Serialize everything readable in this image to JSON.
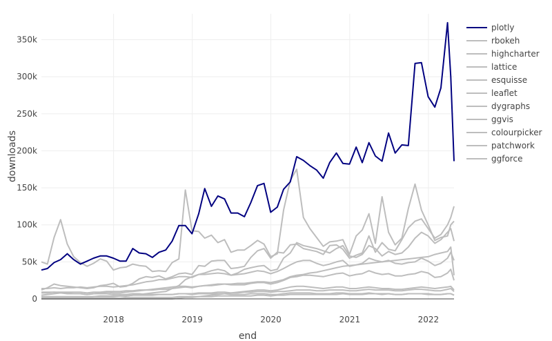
{
  "chart_data": {
    "type": "line",
    "xlabel": "end",
    "ylabel": "downloads",
    "xlim": [
      "2017-01-31",
      "2022-04-30"
    ],
    "ylim": [
      0,
      385000
    ],
    "x_ticks": [
      {
        "date": "2018-01-01",
        "label": "2018"
      },
      {
        "date": "2019-01-01",
        "label": "2019"
      },
      {
        "date": "2020-01-01",
        "label": "2020"
      },
      {
        "date": "2021-01-01",
        "label": "2021"
      },
      {
        "date": "2022-01-01",
        "label": "2022"
      }
    ],
    "y_ticks": [
      {
        "value": 0,
        "label": "0"
      },
      {
        "value": 50000,
        "label": "50k"
      },
      {
        "value": 100000,
        "label": "100k"
      },
      {
        "value": 150000,
        "label": "150k"
      },
      {
        "value": 200000,
        "label": "200k"
      },
      {
        "value": 250000,
        "label": "250k"
      },
      {
        "value": 300000,
        "label": "300k"
      },
      {
        "value": 350000,
        "label": "350k"
      }
    ],
    "grid": true,
    "legend": "right",
    "highlight_color": "#000080",
    "other_color": "#bdbdbd",
    "x": [
      "2017-01-31",
      "2017-02-28",
      "2017-03-31",
      "2017-04-30",
      "2017-05-31",
      "2017-06-30",
      "2017-07-31",
      "2017-08-31",
      "2017-09-30",
      "2017-10-31",
      "2017-11-30",
      "2017-12-31",
      "2018-01-31",
      "2018-02-28",
      "2018-03-31",
      "2018-04-30",
      "2018-05-31",
      "2018-06-30",
      "2018-07-31",
      "2018-08-31",
      "2018-09-30",
      "2018-10-31",
      "2018-11-30",
      "2018-12-31",
      "2019-01-31",
      "2019-02-28",
      "2019-03-31",
      "2019-04-30",
      "2019-05-31",
      "2019-06-30",
      "2019-07-31",
      "2019-08-31",
      "2019-09-30",
      "2019-10-31",
      "2019-11-30",
      "2019-12-31",
      "2020-01-31",
      "2020-02-29",
      "2020-03-31",
      "2020-04-30",
      "2020-05-31",
      "2020-06-30",
      "2020-07-31",
      "2020-08-31",
      "2020-09-30",
      "2020-10-31",
      "2020-11-30",
      "2020-12-31",
      "2021-01-31",
      "2021-02-28",
      "2021-03-31",
      "2021-04-30",
      "2021-05-31",
      "2021-06-30",
      "2021-07-31",
      "2021-08-31",
      "2021-09-30",
      "2021-10-31",
      "2021-11-30",
      "2021-12-31",
      "2022-01-31",
      "2022-02-28",
      "2022-03-31",
      "2022-04-15",
      "2022-04-30"
    ],
    "series": [
      {
        "name": "plotly",
        "highlight": true,
        "values": [
          39000,
          41000,
          49000,
          53000,
          61000,
          53000,
          47000,
          51000,
          55000,
          58000,
          58000,
          55000,
          51000,
          51000,
          68000,
          62000,
          61000,
          56000,
          63000,
          66000,
          78000,
          99000,
          99000,
          88000,
          115000,
          149000,
          125000,
          139000,
          135000,
          116000,
          116000,
          111000,
          130000,
          153000,
          156000,
          117000,
          124000,
          148000,
          158000,
          192000,
          187000,
          180000,
          174000,
          163000,
          184000,
          197000,
          183000,
          182000,
          205000,
          184000,
          211000,
          193000,
          186000,
          224000,
          197000,
          208000,
          207000,
          318000,
          319000,
          273000,
          259000,
          285000,
          373000,
          300000,
          186000
        ]
      },
      {
        "name": "rbokeh",
        "values": [
          50000,
          47000,
          83000,
          107000,
          74000,
          57000,
          49000,
          44000,
          48000,
          54000,
          51000,
          39000,
          42000,
          43000,
          47000,
          45000,
          44000,
          37000,
          38000,
          37000,
          49000,
          54000,
          147000,
          92000,
          91000,
          82000,
          86000,
          76000,
          80000,
          63000,
          66000,
          66000,
          72000,
          79000,
          74000,
          57000,
          61000,
          120000,
          160000,
          175000,
          110000,
          95000,
          83000,
          71000,
          77000,
          78000,
          80000,
          60000,
          85000,
          93000,
          115000,
          75000,
          138000,
          90000,
          73000,
          82000,
          122000,
          155000,
          120000,
          100000,
          79000,
          83000,
          85000,
          100000,
          105000
        ]
      },
      {
        "name": "highcharter",
        "values": [
          12000,
          15000,
          20000,
          18000,
          17000,
          16000,
          15000,
          14000,
          15000,
          18000,
          19000,
          21000,
          16000,
          17000,
          21000,
          27000,
          30000,
          29000,
          31000,
          27000,
          30000,
          34000,
          35000,
          33000,
          45000,
          44000,
          51000,
          52000,
          52000,
          41000,
          42000,
          44000,
          56000,
          65000,
          68000,
          55000,
          63000,
          62000,
          73000,
          74000,
          68000,
          66000,
          64000,
          60000,
          72000,
          73000,
          67000,
          55000,
          59000,
          62000,
          85000,
          63000,
          76000,
          67000,
          65000,
          80000,
          96000,
          105000,
          108000,
          95000,
          82000,
          87000,
          100000,
          110000,
          125000
        ]
      },
      {
        "name": "lattice",
        "values": [
          9000,
          9000,
          9000,
          9000,
          9000,
          9000,
          9000,
          8000,
          9000,
          9000,
          10000,
          10000,
          10000,
          11000,
          11000,
          12000,
          12000,
          13000,
          14000,
          15000,
          16000,
          17000,
          17000,
          16000,
          17000,
          18000,
          18000,
          19000,
          20000,
          20000,
          21000,
          21000,
          22000,
          23000,
          23000,
          22000,
          24000,
          26000,
          30000,
          32000,
          33000,
          35000,
          36000,
          38000,
          40000,
          42000,
          44000,
          45000,
          46000,
          47000,
          48000,
          49000,
          50000,
          51000,
          52000,
          53000,
          54000,
          55000,
          56000,
          57000,
          60000,
          62000,
          64000,
          70000,
          32000
        ]
      },
      {
        "name": "esquisse",
        "values": [
          2000,
          2000,
          2000,
          2000,
          2000,
          2000,
          2000,
          2000,
          3000,
          3000,
          3000,
          3000,
          4000,
          4000,
          5000,
          6000,
          7000,
          8000,
          9000,
          10000,
          14000,
          18000,
          26000,
          30000,
          33000,
          35000,
          38000,
          40000,
          38000,
          32000,
          35000,
          40000,
          42000,
          44000,
          45000,
          38000,
          40000,
          55000,
          62000,
          76000,
          72000,
          70000,
          68000,
          65000,
          62000,
          68000,
          72000,
          58000,
          56000,
          60000,
          72000,
          68000,
          58000,
          64000,
          60000,
          62000,
          70000,
          82000,
          90000,
          85000,
          75000,
          80000,
          90000,
          95000,
          78000
        ]
      },
      {
        "name": "leaflet",
        "values": [
          14000,
          14000,
          15000,
          14000,
          15000,
          15000,
          16000,
          15000,
          16000,
          17000,
          17000,
          16000,
          17000,
          18000,
          19000,
          21000,
          23000,
          24000,
          26000,
          26000,
          28000,
          30000,
          30000,
          29000,
          33000,
          33000,
          34000,
          35000,
          34000,
          32000,
          33000,
          34000,
          36000,
          38000,
          37000,
          34000,
          37000,
          41000,
          46000,
          50000,
          52000,
          52000,
          48000,
          45000,
          47000,
          50000,
          52000,
          44000,
          46000,
          48000,
          55000,
          52000,
          50000,
          52000,
          48000,
          47000,
          49000,
          50000,
          55000,
          51000,
          45000,
          48000,
          55000,
          63000,
          52000
        ]
      },
      {
        "name": "dygraphs",
        "values": [
          5000,
          6000,
          7000,
          8000,
          7000,
          7000,
          7000,
          6000,
          7000,
          8000,
          9000,
          8000,
          8000,
          9000,
          10000,
          11000,
          12000,
          12000,
          13000,
          13000,
          14000,
          15000,
          16000,
          15000,
          17000,
          18000,
          19000,
          20000,
          20000,
          19000,
          19000,
          19000,
          21000,
          22000,
          22000,
          20000,
          22000,
          25000,
          29000,
          30000,
          32000,
          32000,
          31000,
          30000,
          32000,
          34000,
          35000,
          31000,
          33000,
          34000,
          38000,
          35000,
          33000,
          34000,
          31000,
          31000,
          33000,
          34000,
          37000,
          35000,
          29000,
          30000,
          35000,
          40000,
          25000
        ]
      },
      {
        "name": "ggvis",
        "values": [
          8000,
          8000,
          9000,
          8000,
          8000,
          7000,
          7000,
          6000,
          7000,
          7000,
          7000,
          6000,
          6000,
          6000,
          7000,
          7000,
          6000,
          6000,
          6000,
          6000,
          6000,
          7000,
          7000,
          6000,
          7000,
          7000,
          7000,
          7000,
          7000,
          6000,
          6000,
          6000,
          7000,
          7000,
          7000,
          6000,
          6000,
          7000,
          8000,
          8000,
          8000,
          8000,
          7000,
          7000,
          7000,
          8000,
          8000,
          7000,
          7000,
          7000,
          8000,
          7000,
          7000,
          7000,
          6000,
          6000,
          7000,
          7000,
          7000,
          6000,
          6000,
          6000,
          7000,
          7000,
          5000
        ]
      },
      {
        "name": "colourpicker",
        "values": [
          3000,
          3000,
          3000,
          3000,
          3000,
          3000,
          3000,
          3000,
          3000,
          4000,
          4000,
          4000,
          4000,
          4000,
          5000,
          5000,
          5000,
          5000,
          6000,
          6000,
          6000,
          7000,
          7000,
          7000,
          8000,
          8000,
          8000,
          9000,
          9000,
          8000,
          8000,
          9000,
          9000,
          10000,
          10000,
          9000,
          10000,
          10000,
          11000,
          12000,
          12000,
          12000,
          11000,
          11000,
          12000,
          12000,
          12000,
          11000,
          11000,
          12000,
          13000,
          12000,
          12000,
          12000,
          11000,
          11000,
          12000,
          13000,
          13000,
          12000,
          11000,
          11000,
          13000,
          14000,
          10000
        ]
      },
      {
        "name": "patchwork",
        "values": [
          0,
          0,
          0,
          0,
          0,
          0,
          0,
          0,
          0,
          0,
          0,
          0,
          0,
          0,
          0,
          0,
          0,
          0,
          0,
          0,
          0,
          1000,
          2000,
          2000,
          3000,
          4000,
          5000,
          6000,
          7000,
          8000,
          9000,
          10000,
          11000,
          12000,
          12000,
          11000,
          12000,
          14000,
          16000,
          17000,
          17000,
          16000,
          15000,
          14000,
          15000,
          16000,
          16000,
          14000,
          14000,
          15000,
          16000,
          15000,
          14000,
          14000,
          13000,
          13000,
          14000,
          15000,
          16000,
          15000,
          14000,
          15000,
          16000,
          17000,
          12000
        ]
      },
      {
        "name": "ggforce",
        "values": [
          1000,
          1000,
          1000,
          1000,
          1000,
          1000,
          1000,
          1000,
          1000,
          1000,
          1000,
          1000,
          1000,
          2000,
          2000,
          2000,
          2000,
          2000,
          2000,
          2000,
          2000,
          3000,
          3000,
          3000,
          3000,
          3000,
          3000,
          4000,
          4000,
          4000,
          4000,
          4000,
          4000,
          5000,
          5000,
          4000,
          5000,
          5000,
          6000,
          6000,
          6000,
          6000,
          6000,
          6000,
          6000,
          6000,
          7000,
          6000,
          6000,
          6000,
          7000,
          7000,
          6000,
          7000,
          6000,
          6000,
          7000,
          7000,
          7000,
          7000,
          6000,
          6000,
          7000,
          7000,
          5000
        ]
      }
    ]
  }
}
